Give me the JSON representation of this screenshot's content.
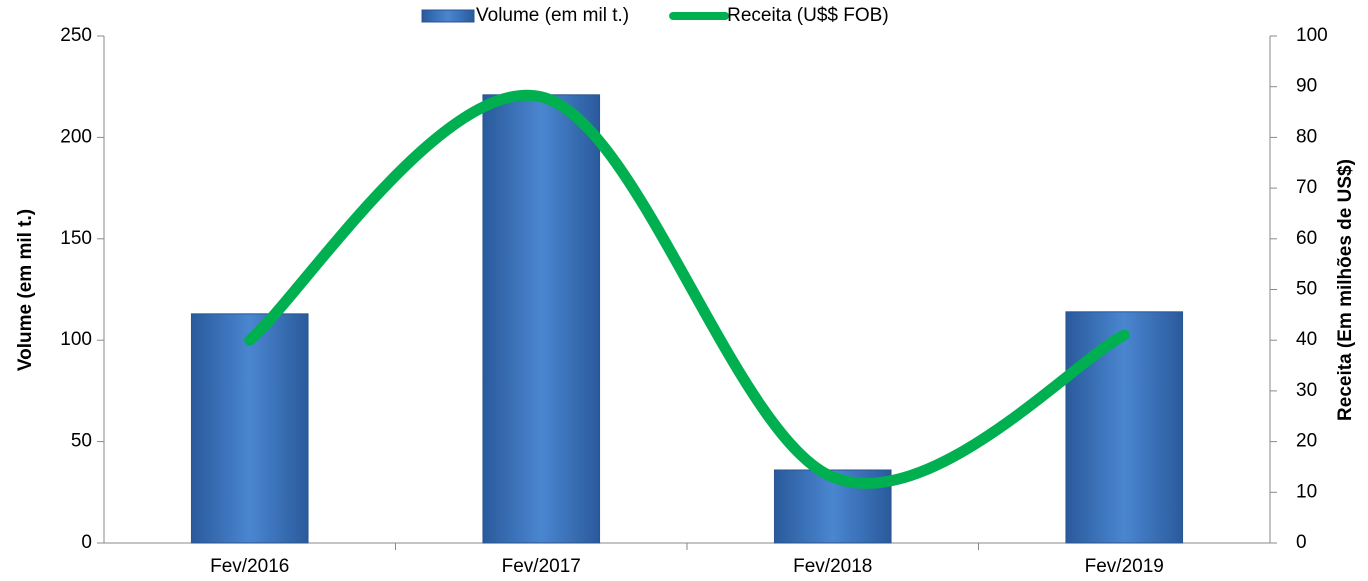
{
  "chart_data": {
    "type": "bar_line",
    "categories": [
      "Fev/2016",
      "Fev/2017",
      "Fev/2018",
      "Fev/2019"
    ],
    "series": [
      {
        "name": "Volume (em mil t.)",
        "color": "#3d78c4",
        "type": "bar",
        "values": [
          113,
          221,
          36,
          114
        ]
      },
      {
        "name": "Receita (U$$ FOB)",
        "color": "#00b050",
        "type": "line",
        "axis": "y2",
        "values": [
          40,
          88,
          13,
          41
        ]
      }
    ],
    "ylabel": "Volume (em mil t.)",
    "y2label": "Receita (Em milhões de US$)",
    "ylim": [
      0,
      250
    ],
    "yticks": [
      0,
      50,
      100,
      150,
      200,
      250
    ],
    "y2lim": [
      0,
      100
    ],
    "y2ticks": [
      0,
      10,
      20,
      30,
      40,
      50,
      60,
      70,
      80,
      90,
      100
    ],
    "legend": "top"
  }
}
